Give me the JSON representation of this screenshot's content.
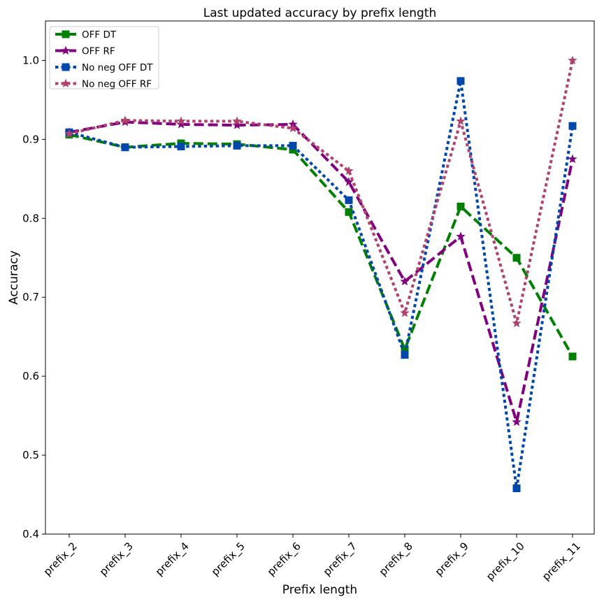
{
  "chart_data": {
    "type": "line",
    "title": "Last updated accuracy by prefix length",
    "xlabel": "Prefix length",
    "ylabel": "Accuracy",
    "categories": [
      "prefix_2",
      "prefix_3",
      "prefix_4",
      "prefix_5",
      "prefix_6",
      "prefix_7",
      "prefix_8",
      "prefix_9",
      "prefix_10",
      "prefix_11"
    ],
    "ylim": [
      0.4,
      1.05
    ],
    "yticks": [
      "0.4",
      "0.5",
      "0.6",
      "0.7",
      "0.8",
      "0.9",
      "1.0"
    ],
    "grid": false,
    "legend_position": "top-left",
    "series": [
      {
        "name": "OFF DT",
        "color": "#008000",
        "style": "dashed",
        "marker": "square",
        "values": [
          0.906,
          0.89,
          0.895,
          0.894,
          0.887,
          0.808,
          0.634,
          0.815,
          0.75,
          0.625
        ]
      },
      {
        "name": "OFF RF",
        "color": "#800080",
        "style": "dashed",
        "marker": "star",
        "values": [
          0.909,
          0.922,
          0.919,
          0.918,
          0.919,
          0.846,
          0.72,
          0.777,
          0.542,
          0.875
        ]
      },
      {
        "name": "No neg OFF DT",
        "color": "#0047ab",
        "style": "dotted",
        "marker": "square",
        "values": [
          0.909,
          0.89,
          0.891,
          0.892,
          0.892,
          0.823,
          0.627,
          0.974,
          0.458,
          0.917
        ]
      },
      {
        "name": "No neg OFF RF",
        "color": "#b0426f",
        "style": "dotted",
        "marker": "star",
        "values": [
          0.907,
          0.924,
          0.923,
          0.923,
          0.914,
          0.86,
          0.68,
          0.923,
          0.667,
          1.0
        ]
      }
    ]
  }
}
